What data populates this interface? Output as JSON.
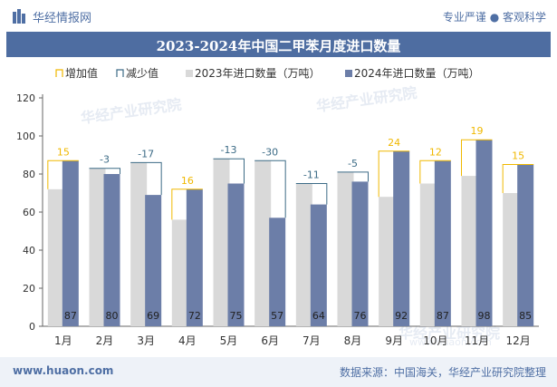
{
  "header": {
    "site_name": "华经情报网",
    "slogan": "专业严谨 ● 客观科学"
  },
  "watermarks": [
    "华经产业研究院",
    "www.huaon.com"
  ],
  "footer": {
    "url": "www.huaon.com",
    "source": "数据来源：中国海关，华经产业研究院整理"
  },
  "colors": {
    "title_bg": "#4e6da1",
    "bar_2023": "#d9d9d9",
    "bar_2024": "#6c7ea8",
    "increase": "#f0b800",
    "decrease": "#3c6b86"
  },
  "chart_data": {
    "type": "bar",
    "title": "2023-2024年中国二甲苯月度进口数量",
    "categories": [
      "1月",
      "2月",
      "3月",
      "4月",
      "5月",
      "6月",
      "7月",
      "8月",
      "9月",
      "10月",
      "11月",
      "12月"
    ],
    "series": [
      {
        "name": "2023年进口数量（万吨）",
        "values": [
          72,
          83,
          86,
          56,
          88,
          87,
          75,
          81,
          68,
          75,
          79,
          70
        ]
      },
      {
        "name": "2024年进口数量（万吨）",
        "values": [
          87,
          80,
          69,
          72,
          75,
          57,
          64,
          76,
          92,
          87,
          98,
          85
        ]
      }
    ],
    "change": [
      15,
      -3,
      -17,
      16,
      -13,
      -30,
      -11,
      -5,
      24,
      12,
      19,
      15
    ],
    "legend": [
      "增加值",
      "减少值",
      "2023年进口数量（万吨）",
      "2024年进口数量（万吨）"
    ],
    "legend_position": "top",
    "ylim": [
      0,
      120
    ],
    "yticks": [
      0,
      20,
      40,
      60,
      80,
      100,
      120
    ],
    "xlabel": "",
    "ylabel": "",
    "grid": false
  }
}
